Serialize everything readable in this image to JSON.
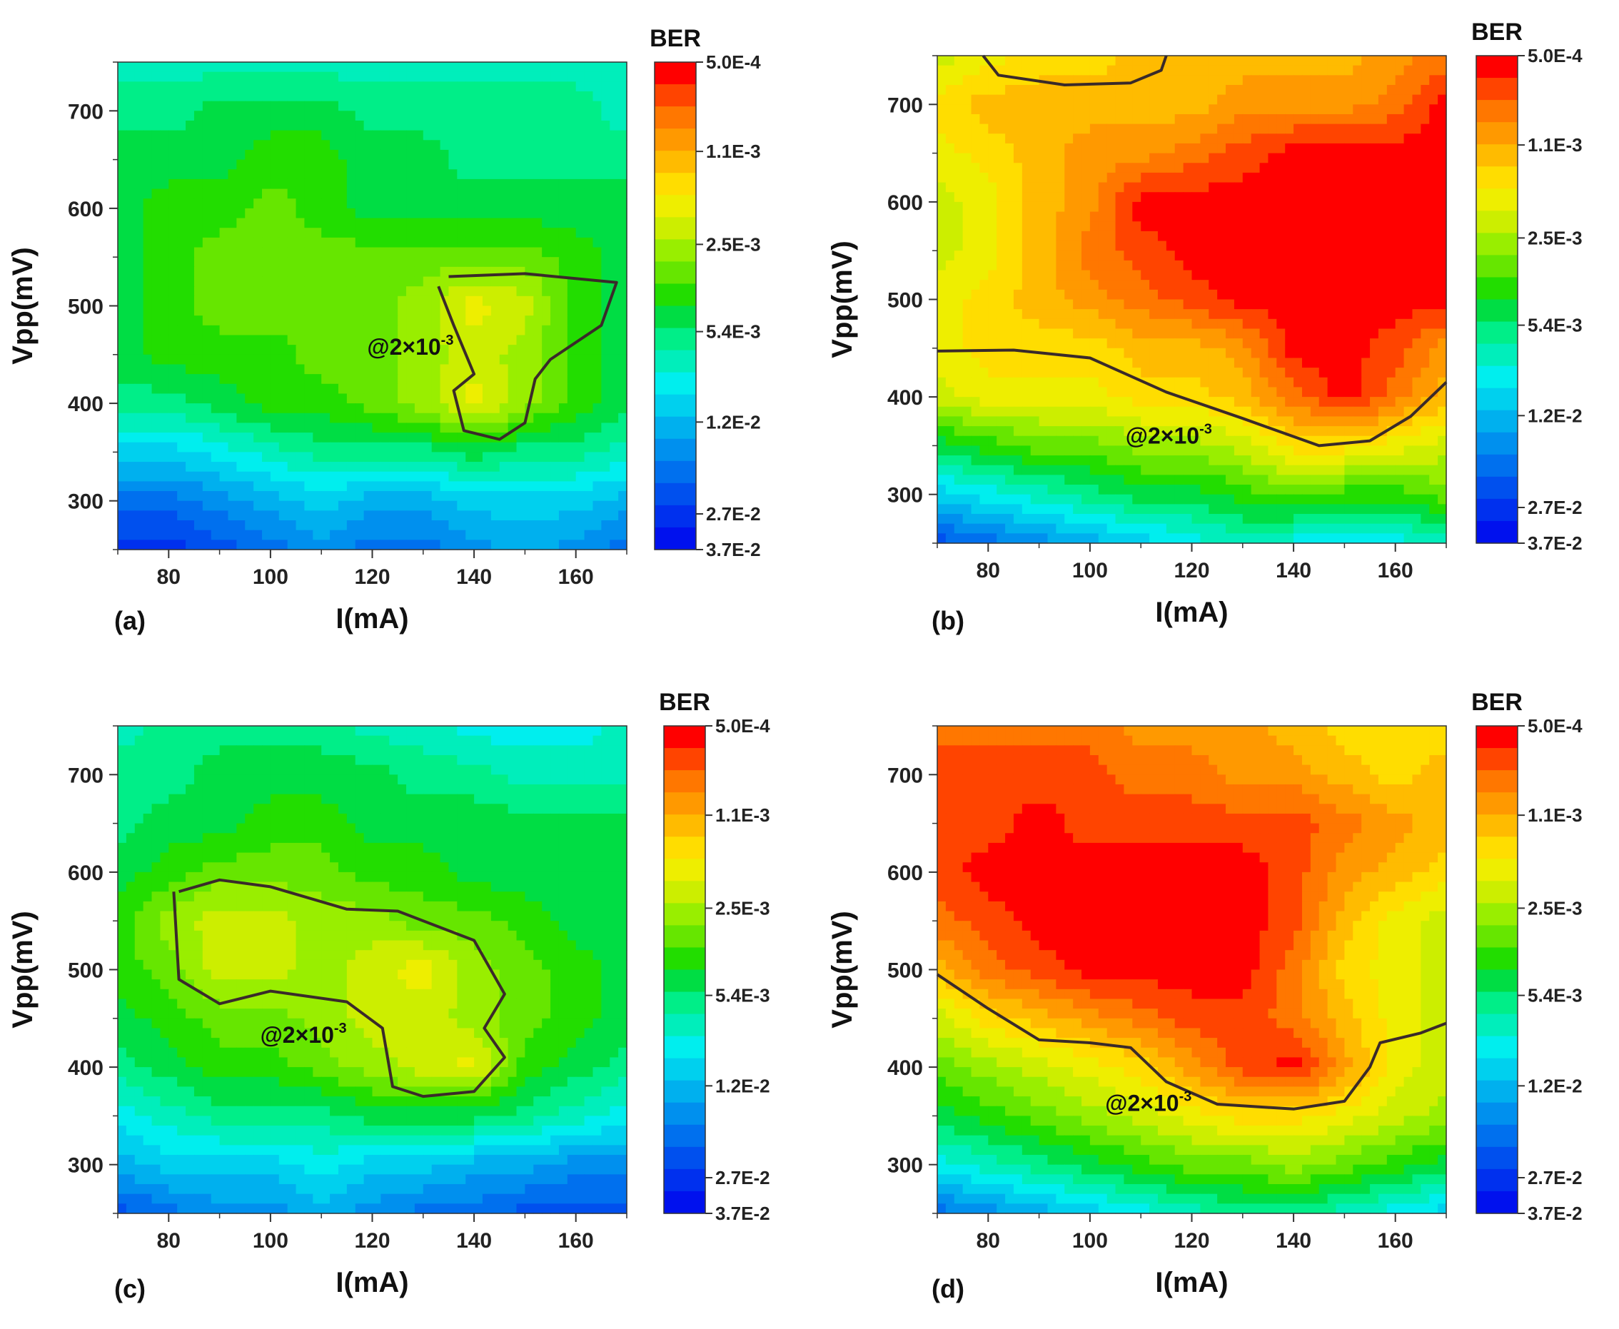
{
  "colorbar": {
    "title": "BER",
    "colors": [
      "#0011ee",
      "#0030ee",
      "#0050ee",
      "#0070ee",
      "#0090ee",
      "#00b0ee",
      "#00d0ee",
      "#00eeee",
      "#00eebb",
      "#00ee88",
      "#00dd44",
      "#22dd00",
      "#66e600",
      "#99ee00",
      "#ccee00",
      "#eeee00",
      "#ffdd00",
      "#ffbb00",
      "#ff9900",
      "#ff7700",
      "#ff4400",
      "#ff0000"
    ],
    "tick_labels": [
      "5.0E-4",
      "1.1E-3",
      "2.5E-3",
      "5.4E-3",
      "1.2E-2",
      "2.7E-2",
      "3.7E-2"
    ],
    "tick_values": [
      0.0005,
      0.0011,
      0.0025,
      0.0054,
      0.012,
      0.027,
      0.037
    ],
    "range": [
      0.037,
      0.0005
    ]
  },
  "chart_data": [
    {
      "type": "heatmap",
      "panel": "(a)",
      "xlabel": "I(mA)",
      "ylabel": "Vpp(mV)",
      "xlim": [
        70,
        170
      ],
      "ylim": [
        250,
        750
      ],
      "xticks": [
        80,
        100,
        120,
        140,
        160
      ],
      "yticks": [
        300,
        400,
        500,
        600,
        700
      ],
      "x": [
        70,
        80,
        90,
        100,
        110,
        120,
        130,
        140,
        150,
        160,
        170
      ],
      "y": [
        250,
        300,
        350,
        400,
        450,
        500,
        550,
        600,
        650,
        700,
        750
      ],
      "z_index": [
        [
          1,
          1,
          2,
          3,
          4,
          3,
          3,
          4,
          5,
          4,
          3
        ],
        [
          3,
          3,
          4,
          5,
          6,
          5,
          5,
          6,
          6,
          6,
          5
        ],
        [
          6,
          6,
          7,
          8,
          9,
          9,
          9,
          10,
          9,
          9,
          8
        ],
        [
          9,
          9,
          10,
          11,
          11,
          12,
          13,
          15,
          13,
          11,
          10
        ],
        [
          10,
          11,
          11,
          11,
          12,
          12,
          13,
          14,
          13,
          11,
          10
        ],
        [
          10,
          11,
          12,
          12,
          12,
          12,
          13,
          15,
          14,
          11,
          10
        ],
        [
          10,
          11,
          12,
          12,
          12,
          12,
          12,
          12,
          12,
          11,
          10
        ],
        [
          10,
          11,
          11,
          12,
          11,
          10,
          10,
          10,
          10,
          10,
          10
        ],
        [
          10,
          10,
          10,
          11,
          11,
          10,
          10,
          9,
          9,
          9,
          9
        ],
        [
          9,
          9,
          10,
          10,
          10,
          9,
          9,
          9,
          9,
          9,
          8
        ],
        [
          8,
          8,
          8,
          8,
          8,
          8,
          8,
          8,
          8,
          8,
          8
        ]
      ],
      "contour": {
        "label": "@2×10",
        "exponent": "-3",
        "label_pos": [
          119,
          450
        ],
        "path": [
          [
            135,
            530
          ],
          [
            150,
            533
          ],
          [
            168,
            524
          ],
          [
            165,
            480
          ],
          [
            155,
            445
          ],
          [
            152,
            425
          ],
          [
            150,
            380
          ],
          [
            145,
            363
          ],
          [
            138,
            372
          ],
          [
            136,
            413
          ],
          [
            140,
            430
          ],
          [
            136,
            480
          ],
          [
            133,
            520
          ]
        ]
      }
    },
    {
      "type": "heatmap",
      "panel": "(b)",
      "xlabel": "I(mA)",
      "ylabel": "Vpp(mV)",
      "xlim": [
        70,
        170
      ],
      "ylim": [
        250,
        750
      ],
      "xticks": [
        80,
        100,
        120,
        140,
        160
      ],
      "yticks": [
        300,
        400,
        500,
        600,
        700
      ],
      "x": [
        70,
        80,
        90,
        100,
        110,
        120,
        130,
        140,
        150,
        160,
        170
      ],
      "y": [
        250,
        300,
        350,
        400,
        450,
        500,
        550,
        600,
        650,
        700,
        750
      ],
      "z_index": [
        [
          2,
          3,
          4,
          5,
          6,
          7,
          8,
          7,
          6,
          7,
          8
        ],
        [
          6,
          7,
          8,
          9,
          10,
          10,
          11,
          12,
          11,
          11,
          12
        ],
        [
          10,
          11,
          12,
          12,
          13,
          13,
          14,
          16,
          16,
          15,
          14
        ],
        [
          14,
          15,
          15,
          15,
          16,
          16,
          17,
          19,
          21,
          19,
          17
        ],
        [
          15,
          16,
          16,
          16,
          17,
          17,
          18,
          21,
          21,
          20,
          18
        ],
        [
          15,
          16,
          17,
          18,
          19,
          20,
          21,
          21,
          21,
          21,
          21
        ],
        [
          14,
          15,
          17,
          19,
          20,
          21,
          21,
          21,
          21,
          21,
          21
        ],
        [
          14,
          15,
          17,
          18,
          21,
          21,
          21,
          21,
          21,
          21,
          21
        ],
        [
          15,
          16,
          17,
          18,
          18,
          19,
          20,
          21,
          21,
          21,
          21
        ],
        [
          16,
          17,
          17,
          17,
          17,
          17,
          18,
          18,
          18,
          19,
          21
        ],
        [
          14,
          15,
          16,
          16,
          17,
          17,
          17,
          17,
          17,
          18,
          19
        ]
      ],
      "contour": {
        "label": "@2×10",
        "exponent": "-3",
        "label_pos": [
          107,
          352
        ],
        "path": [
          [
            70,
            447
          ],
          [
            85,
            448
          ],
          [
            100,
            440
          ],
          [
            115,
            405
          ],
          [
            130,
            378
          ],
          [
            145,
            350
          ],
          [
            155,
            355
          ],
          [
            163,
            380
          ],
          [
            170,
            415
          ]
        ],
        "path2": [
          [
            79,
            750
          ],
          [
            82,
            730
          ],
          [
            95,
            720
          ],
          [
            108,
            722
          ],
          [
            114,
            735
          ],
          [
            115,
            750
          ]
        ]
      }
    },
    {
      "type": "heatmap",
      "panel": "(c)",
      "xlabel": "I(mA)",
      "ylabel": "Vpp(mV)",
      "xlim": [
        70,
        170
      ],
      "ylim": [
        250,
        750
      ],
      "xticks": [
        80,
        100,
        120,
        140,
        160
      ],
      "yticks": [
        300,
        400,
        500,
        600,
        700
      ],
      "x": [
        70,
        80,
        90,
        100,
        110,
        120,
        130,
        140,
        150,
        160,
        170
      ],
      "y": [
        250,
        300,
        350,
        400,
        450,
        500,
        550,
        600,
        650,
        700,
        750
      ],
      "z_index": [
        [
          2,
          3,
          4,
          4,
          5,
          4,
          3,
          3,
          2,
          2,
          2
        ],
        [
          5,
          6,
          6,
          6,
          7,
          6,
          6,
          5,
          5,
          4,
          4
        ],
        [
          7,
          8,
          9,
          9,
          9,
          10,
          10,
          10,
          9,
          8,
          7
        ],
        [
          9,
          10,
          11,
          11,
          12,
          13,
          14,
          15,
          11,
          10,
          9
        ],
        [
          10,
          11,
          12,
          12,
          13,
          14,
          14,
          13,
          12,
          11,
          10
        ],
        [
          11,
          12,
          14,
          14,
          13,
          14,
          15,
          13,
          12,
          11,
          10
        ],
        [
          11,
          13,
          14,
          14,
          13,
          13,
          12,
          12,
          11,
          10,
          10
        ],
        [
          10,
          11,
          12,
          12,
          12,
          11,
          11,
          10,
          10,
          10,
          10
        ],
        [
          9,
          10,
          10,
          11,
          11,
          10,
          10,
          10,
          10,
          10,
          10
        ],
        [
          9,
          9,
          10,
          10,
          10,
          10,
          9,
          9,
          8,
          8,
          8
        ],
        [
          8,
          9,
          9,
          9,
          9,
          8,
          8,
          7,
          7,
          7,
          8
        ]
      ],
      "contour": {
        "label": "@2×10",
        "exponent": "-3",
        "label_pos": [
          98,
          425
        ],
        "path": [
          [
            82,
            580
          ],
          [
            90,
            592
          ],
          [
            100,
            585
          ],
          [
            115,
            562
          ],
          [
            125,
            560
          ],
          [
            140,
            530
          ],
          [
            146,
            475
          ],
          [
            142,
            440
          ],
          [
            146,
            410
          ],
          [
            140,
            375
          ],
          [
            130,
            370
          ],
          [
            124,
            380
          ],
          [
            122,
            440
          ],
          [
            115,
            467
          ],
          [
            100,
            478
          ],
          [
            90,
            465
          ],
          [
            82,
            490
          ],
          [
            81,
            580
          ]
        ]
      }
    },
    {
      "type": "heatmap",
      "panel": "(d)",
      "xlabel": "I(mA)",
      "ylabel": "Vpp(mV)",
      "xlim": [
        70,
        170
      ],
      "ylim": [
        250,
        750
      ],
      "xticks": [
        80,
        100,
        120,
        140,
        160
      ],
      "yticks": [
        300,
        400,
        500,
        600,
        700
      ],
      "x": [
        70,
        80,
        90,
        100,
        110,
        120,
        130,
        140,
        150,
        160,
        170
      ],
      "y": [
        250,
        300,
        350,
        400,
        450,
        500,
        550,
        600,
        650,
        700,
        750
      ],
      "z_index": [
        [
          3,
          4,
          5,
          6,
          7,
          8,
          9,
          9,
          8,
          7,
          6
        ],
        [
          7,
          8,
          9,
          10,
          11,
          12,
          12,
          13,
          12,
          11,
          10
        ],
        [
          10,
          11,
          12,
          13,
          14,
          15,
          16,
          16,
          15,
          14,
          13
        ],
        [
          12,
          13,
          14,
          15,
          16,
          18,
          20,
          21,
          18,
          15,
          14
        ],
        [
          14,
          16,
          17,
          18,
          19,
          20,
          20,
          19,
          17,
          15,
          14
        ],
        [
          17,
          19,
          20,
          21,
          21,
          21,
          21,
          19,
          16,
          15,
          14
        ],
        [
          19,
          20,
          21,
          21,
          21,
          21,
          21,
          20,
          17,
          15,
          14
        ],
        [
          20,
          21,
          21,
          21,
          21,
          21,
          21,
          20,
          18,
          17,
          16
        ],
        [
          20,
          20,
          21,
          20,
          20,
          20,
          20,
          20,
          19,
          18,
          17
        ],
        [
          20,
          20,
          20,
          20,
          19,
          19,
          18,
          18,
          17,
          16,
          17
        ],
        [
          19,
          19,
          19,
          19,
          18,
          18,
          18,
          17,
          16,
          16,
          16
        ]
      ],
      "contour": {
        "label": "@2×10",
        "exponent": "-3",
        "label_pos": [
          103,
          355
        ],
        "path": [
          [
            70,
            495
          ],
          [
            80,
            460
          ],
          [
            90,
            428
          ],
          [
            100,
            425
          ],
          [
            108,
            420
          ],
          [
            115,
            385
          ],
          [
            125,
            362
          ],
          [
            140,
            357
          ],
          [
            150,
            365
          ],
          [
            155,
            400
          ],
          [
            157,
            425
          ],
          [
            165,
            435
          ],
          [
            170,
            445
          ]
        ]
      }
    }
  ]
}
